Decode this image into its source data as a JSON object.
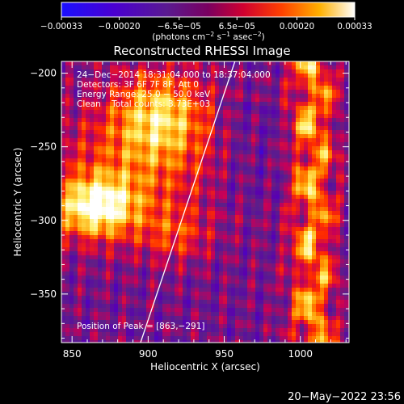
{
  "chart_data": {
    "type": "heatmap",
    "title": "Reconstructed RHESSI Image",
    "xlabel": "Heliocentric X (arcsec)",
    "ylabel": "Heliocentric Y (arcsec)",
    "xlim": [
      843,
      1032
    ],
    "ylim": [
      -383,
      -192
    ],
    "x_ticks": [
      850,
      900,
      950,
      1000
    ],
    "x_tick_labels": [
      "850",
      "900",
      "950",
      "1000"
    ],
    "y_ticks": [
      -350,
      -300,
      -250,
      -200
    ],
    "y_tick_labels": [
      "−350",
      "−300",
      "−250",
      "−200"
    ],
    "colorbar": {
      "range": [
        -0.00033,
        0.00033
      ],
      "ticks": [
        -0.00033,
        -0.0002,
        -6.5e-05,
        6.5e-05,
        0.0002,
        0.00033
      ],
      "tick_labels": [
        "−0.00033",
        "−0.00020",
        "−6.5e−05",
        "6.5e−05",
        "0.00020",
        "0.00033"
      ],
      "units_label": "(photons cm",
      "units_exp1": "−2",
      "units_mid": " s",
      "units_exp2": "−1",
      "units_mid2": " asec",
      "units_exp3": "−2",
      "units_end": ")",
      "colors": [
        "#1a10ff",
        "#5a00b0",
        "#5b1f8a",
        "#c4005a",
        "#ff2a00",
        "#ff9a00",
        "#ffee60",
        "#ffffff"
      ]
    },
    "info_lines": [
      "24−Dec−2014 18:31:04.000 to 18:37:04.000",
      "Detectors: 3F 6F 7F 8F, Att 0",
      "Energy Range: 25.0 − 50.0 keV",
      "Clean    Total counts: 3.73E+03"
    ],
    "peak_label": "Position of Peak = [863,−291]",
    "peak": [
      863,
      -291
    ],
    "limb_line": [
      [
        895,
        -383
      ],
      [
        957,
        -192
      ]
    ],
    "timestamp": "20−May−2022 23:56"
  }
}
